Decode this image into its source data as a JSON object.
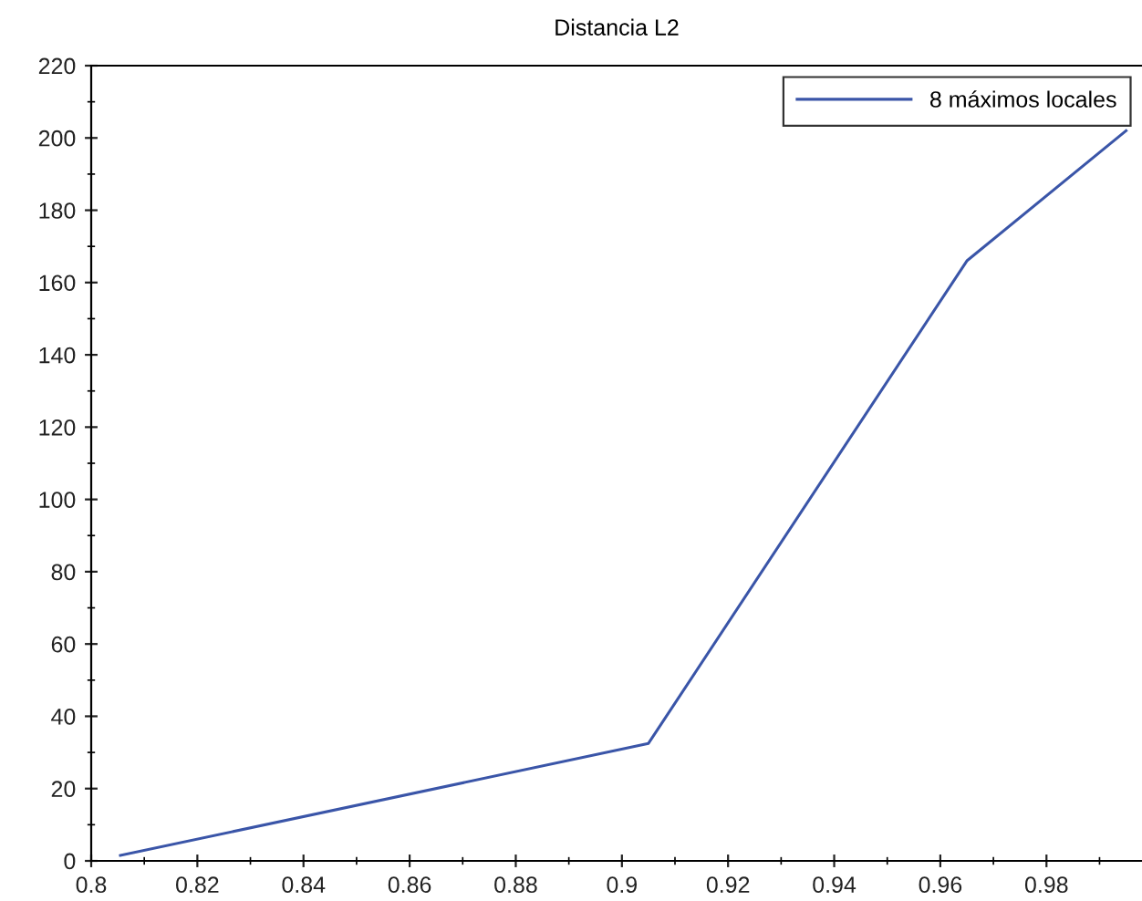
{
  "chart_data": {
    "type": "line",
    "title": "Distancia L2",
    "x": [
      0.8055,
      0.905,
      0.965,
      0.995
    ],
    "series": [
      {
        "name": "8 máximos locales",
        "color": "#3a55a8",
        "values": [
          1.5,
          32.5,
          166,
          202
        ]
      }
    ],
    "xlim": [
      0.8,
      0.998
    ],
    "xticks": [
      0.8,
      0.82,
      0.84,
      0.86,
      0.88,
      0.9,
      0.92,
      0.94,
      0.96,
      0.98
    ],
    "ylim": [
      0,
      220
    ],
    "yticks": [
      0,
      20,
      40,
      60,
      80,
      100,
      120,
      140,
      160,
      180,
      200,
      220
    ],
    "grid": false,
    "legend": "top right",
    "marker": "none",
    "line_style": "solid"
  }
}
